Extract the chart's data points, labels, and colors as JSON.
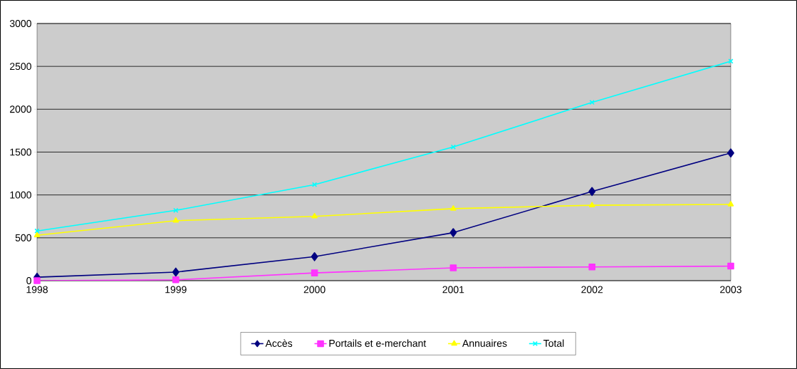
{
  "chart_data": {
    "type": "line",
    "x": [
      1998,
      1999,
      2000,
      2001,
      2002,
      2003
    ],
    "xlim": [
      1998,
      2003
    ],
    "xticks": [
      1998,
      1999,
      2000,
      2001,
      2002,
      2003
    ],
    "ylim": [
      0,
      3000
    ],
    "yticks": [
      0,
      500,
      1000,
      1500,
      2000,
      2500,
      3000
    ],
    "grid": "y",
    "legend": "bottom",
    "line_style": "solid",
    "series": [
      {
        "name": "Accès",
        "color": "#000080",
        "marker": "diamond",
        "values": [
          40,
          100,
          280,
          560,
          1040,
          1490
        ]
      },
      {
        "name": "Portails et e-merchant",
        "color": "#ff33ff",
        "marker": "square",
        "values": [
          0,
          10,
          90,
          150,
          160,
          170
        ]
      },
      {
        "name": "Annuaires",
        "color": "#ffff00",
        "marker": "triangle",
        "values": [
          530,
          700,
          750,
          840,
          880,
          890
        ]
      },
      {
        "name": "Total",
        "color": "#00ffff",
        "marker": "cross",
        "values": [
          580,
          820,
          1120,
          1560,
          2080,
          2560
        ]
      }
    ]
  }
}
